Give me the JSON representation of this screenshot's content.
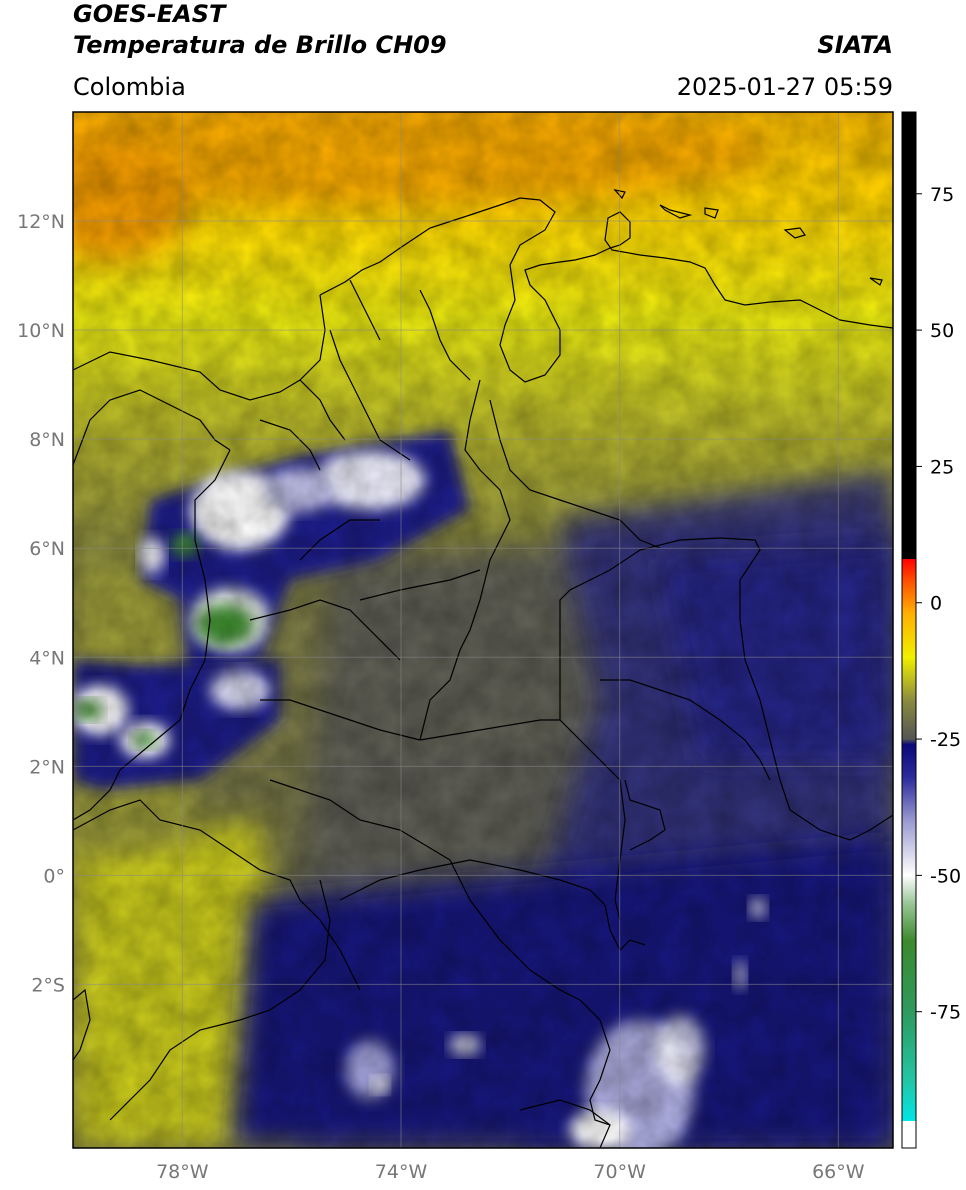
{
  "header": {
    "satellite": "GOES-EAST",
    "product": "Temperatura de Brillo CH09",
    "region": "Colombia",
    "agency": "SIATA",
    "timestamp": "2025-01-27 05:59"
  },
  "map": {
    "extent": {
      "lon": [
        -80,
        -65
      ],
      "lat": [
        -5,
        14
      ]
    },
    "lat_ticks": [
      {
        "value": 12,
        "label": "12°N"
      },
      {
        "value": 10,
        "label": "10°N"
      },
      {
        "value": 8,
        "label": "8°N"
      },
      {
        "value": 6,
        "label": "6°N"
      },
      {
        "value": 4,
        "label": "4°N"
      },
      {
        "value": 2,
        "label": "2°N"
      },
      {
        "value": 0,
        "label": "0°"
      },
      {
        "value": -2,
        "label": "2°S"
      }
    ],
    "lon_ticks": [
      {
        "value": -78,
        "label": "78°W"
      },
      {
        "value": -74,
        "label": "74°W"
      },
      {
        "value": -70,
        "label": "70°W"
      },
      {
        "value": -66,
        "label": "66°W"
      }
    ],
    "gridlines": true
  },
  "colorbar": {
    "range": [
      -100,
      90
    ],
    "ticks": [
      {
        "value": 75,
        "label": "75"
      },
      {
        "value": 50,
        "label": "50"
      },
      {
        "value": 25,
        "label": "25"
      },
      {
        "value": 0,
        "label": "0"
      },
      {
        "value": -25,
        "label": "-25"
      },
      {
        "value": -50,
        "label": "-50"
      },
      {
        "value": -75,
        "label": "-75"
      }
    ],
    "stops": [
      {
        "value": -100,
        "color": "#ffffff"
      },
      {
        "value": -95,
        "color": "#ffffff"
      },
      {
        "value": -95,
        "color": "#00e5e5"
      },
      {
        "value": -88,
        "color": "#22c7a8"
      },
      {
        "value": -75,
        "color": "#2e9a5e"
      },
      {
        "value": -62,
        "color": "#3c8a2e"
      },
      {
        "value": -55,
        "color": "#9cc79a"
      },
      {
        "value": -50,
        "color": "#ffffff"
      },
      {
        "value": -40,
        "color": "#9a9ad0"
      },
      {
        "value": -32,
        "color": "#2b2b9c"
      },
      {
        "value": -26,
        "color": "#0a0a78"
      },
      {
        "value": -25,
        "color": "#555555"
      },
      {
        "value": -18,
        "color": "#8a8a40"
      },
      {
        "value": -10,
        "color": "#f0f000"
      },
      {
        "value": -2,
        "color": "#ffb000"
      },
      {
        "value": 4,
        "color": "#ff5000"
      },
      {
        "value": 8,
        "color": "#ff0000"
      },
      {
        "value": 8,
        "color": "#000000"
      },
      {
        "value": 90,
        "color": "#000000"
      }
    ]
  }
}
